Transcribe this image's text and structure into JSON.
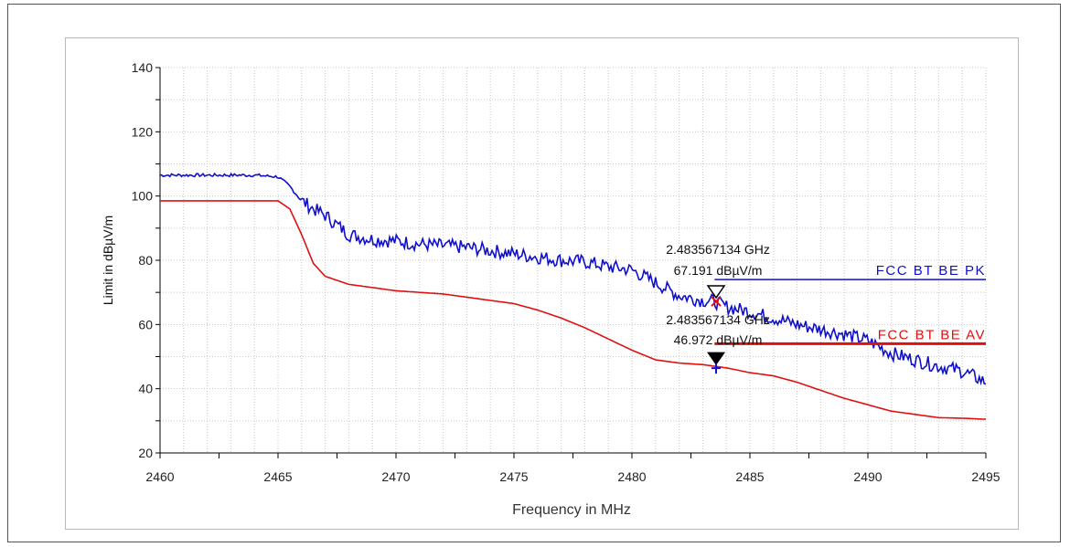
{
  "chart_data": {
    "type": "line",
    "xlabel": "Frequency in MHz",
    "ylabel": "Limit in dBµV/m",
    "xlim": [
      2460,
      2495
    ],
    "ylim": [
      20,
      140
    ],
    "x_ticks": [
      "2460",
      "2465",
      "2470",
      "2475",
      "2480",
      "2485",
      "2490",
      "2495"
    ],
    "y_ticks": [
      "20",
      "40",
      "60",
      "80",
      "100",
      "120",
      "140"
    ],
    "grid": true,
    "series": [
      {
        "name": "",
        "color": "#1010cc",
        "x": [
          2460,
          2461,
          2462,
          2463,
          2464,
          2465,
          2465.5,
          2466,
          2466.5,
          2467,
          2467.5,
          2468,
          2469,
          2470,
          2471,
          2472,
          2473,
          2474,
          2475,
          2476,
          2477,
          2478,
          2479,
          2480,
          2481,
          2482,
          2483,
          2483.5,
          2484,
          2485,
          2486,
          2487,
          2488,
          2489,
          2490,
          2491,
          2492,
          2493,
          2494,
          2495
        ],
        "y": [
          106.5,
          106.5,
          106.5,
          106.5,
          106.5,
          106,
          103,
          98.5,
          96,
          94,
          91,
          88,
          86.5,
          86,
          85,
          84.5,
          84,
          83,
          82,
          81,
          80,
          79.5,
          78,
          77,
          73,
          69,
          67.5,
          67.2,
          65.5,
          64,
          62,
          60,
          58.5,
          57,
          55,
          51,
          49,
          47,
          45.5,
          42
        ]
      },
      {
        "name": "",
        "color": "#e01010",
        "x": [
          2460,
          2461,
          2462,
          2463,
          2464,
          2465,
          2465.5,
          2466,
          2466.5,
          2467,
          2468,
          2469,
          2470,
          2471,
          2472,
          2473,
          2474,
          2475,
          2476,
          2477,
          2478,
          2479,
          2480,
          2481,
          2482,
          2483,
          2483.5,
          2484,
          2485,
          2486,
          2487,
          2488,
          2489,
          2490,
          2491,
          2492,
          2493,
          2494,
          2495
        ],
        "y": [
          98.5,
          98.5,
          98.5,
          98.5,
          98.5,
          98.5,
          96,
          88,
          79,
          75,
          72.5,
          71.5,
          70.5,
          70,
          69.5,
          68.5,
          67.5,
          66.5,
          64.5,
          62,
          59,
          55.5,
          52,
          49,
          48,
          47.5,
          47,
          46.5,
          45,
          44,
          42,
          39.5,
          37,
          35,
          33,
          32,
          31,
          30.8,
          30.5
        ]
      },
      {
        "name": "FCC BT BE PK",
        "color": "#1010cc",
        "x": [
          2483.5,
          2495
        ],
        "y": [
          74,
          74
        ]
      },
      {
        "name": "FCC BT BE AV",
        "color": "#e01010",
        "x": [
          2483.5,
          2495
        ],
        "y": [
          54,
          54
        ]
      }
    ],
    "markers": [
      {
        "x": 2483.567134,
        "y": 67.191,
        "style": "open-triangle",
        "freq_text": "2.483567134 GHz",
        "level_text": "67.191 dBµV/m"
      },
      {
        "x": 2483.567134,
        "y": 46.972,
        "style": "filled-triangle",
        "freq_text": "2.483567134 GHz",
        "level_text": "46.972 dBµV/m"
      }
    ],
    "limit_labels": [
      {
        "text": "FCC BT BE PK",
        "color": "#1010cc"
      },
      {
        "text": "FCC BT BE AV",
        "color": "#e01010"
      }
    ]
  }
}
